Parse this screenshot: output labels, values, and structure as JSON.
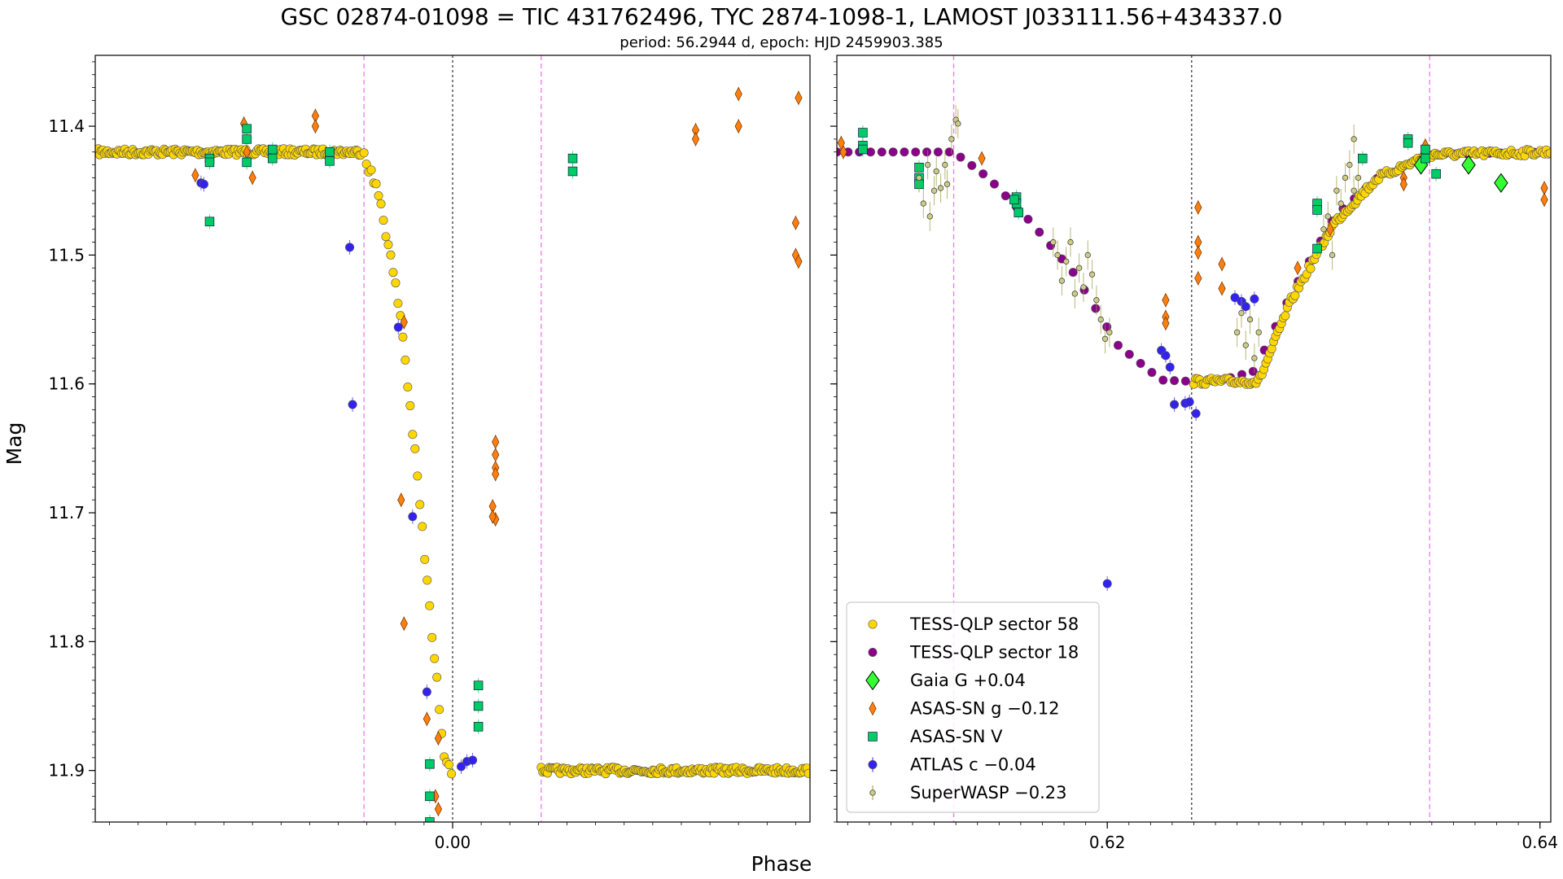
{
  "title": "GSC 02874-01098 = TIC 431762496, TYC 2874-1098-1, LAMOST J033111.56+434337.0",
  "subtitle": "period: 56.2944 d, epoch: HJD 2459903.385",
  "xlabel": "Phase",
  "ylabel": "Mag",
  "chart_data": {
    "type": "scatter",
    "ylim": [
      11.94,
      11.345
    ],
    "y_inverted": true,
    "y_ticks": [
      11.4,
      11.5,
      11.6,
      11.7,
      11.8,
      11.9
    ],
    "y_tick_labels": [
      "11.4",
      "11.5",
      "11.6",
      "11.7",
      "11.8",
      "11.9"
    ],
    "legend_position": "lower-left of right panel",
    "legend": [
      {
        "label": "TESS-QLP sector 58",
        "marker": "circle",
        "color": "#FFD700"
      },
      {
        "label": "TESS-QLP sector 18",
        "marker": "circle",
        "color": "#8B008B"
      },
      {
        "label": "Gaia G +0.04",
        "marker": "diamond",
        "color": "#33FF33"
      },
      {
        "label": "ASAS-SN g −0.12",
        "marker": "thin-diamond",
        "color": "#FF7F0E"
      },
      {
        "label": "ASAS-SN V",
        "marker": "square",
        "color": "#00CC66"
      },
      {
        "label": "ATLAS c −0.04",
        "marker": "circle",
        "color": "#3322EE"
      },
      {
        "label": "SuperWASP −0.23",
        "marker": "small-circle",
        "color": "#CCCC88"
      }
    ],
    "panels": [
      {
        "name": "primary eclipse",
        "xlim": [
          -0.0125,
          0.0125
        ],
        "x_ticks": [
          0.0
        ],
        "x_tick_labels": [
          "0.00"
        ],
        "vlines": [
          {
            "x": -0.0031,
            "style": "dashed",
            "color": "#EE82EE"
          },
          {
            "x": 0.0,
            "style": "dashed",
            "color": "#000000"
          },
          {
            "x": 0.0031,
            "style": "dashed",
            "color": "#EE82EE"
          }
        ],
        "series": [
          {
            "name": "TESS-QLP sector 58",
            "kind": "tess58_primary",
            "model": {
              "x": [
                -0.0125,
                -0.0031,
                -0.0025,
                -0.0018,
                -0.0012,
                -0.0007,
                -0.0003,
                0.0
              ],
              "y": [
                11.42,
                11.42,
                11.46,
                11.55,
                11.68,
                11.8,
                11.885,
                11.9
              ]
            },
            "gap": [
              0.0,
              0.0031
            ]
          },
          {
            "name": "ASAS-SN g −0.12",
            "points": [
              [
                -0.009,
                11.438
              ],
              [
                -0.0073,
                11.398
              ],
              [
                -0.0072,
                11.42
              ],
              [
                -0.007,
                11.44
              ],
              [
                -0.0048,
                11.392
              ],
              [
                -0.0048,
                11.4
              ],
              [
                -0.0017,
                11.552
              ],
              [
                -0.0018,
                11.69
              ],
              [
                -0.0017,
                11.786
              ],
              [
                -0.0009,
                11.86
              ],
              [
                -0.0005,
                11.93
              ],
              [
                -0.0005,
                11.875
              ],
              [
                -0.0006,
                11.92
              ],
              [
                0.0015,
                11.645
              ],
              [
                0.0015,
                11.655
              ],
              [
                0.0015,
                11.665
              ],
              [
                0.0015,
                11.67
              ],
              [
                0.0014,
                11.695
              ],
              [
                0.0015,
                11.705
              ],
              [
                0.0014,
                11.703
              ],
              [
                0.0085,
                11.403
              ],
              [
                0.0085,
                11.41
              ],
              [
                0.01,
                11.375
              ],
              [
                0.01,
                11.4
              ],
              [
                0.012,
                11.475
              ],
              [
                0.012,
                11.5
              ],
              [
                0.0121,
                11.505
              ],
              [
                0.0121,
                11.378
              ]
            ]
          },
          {
            "name": "ASAS-SN V",
            "points": [
              [
                -0.0085,
                11.425
              ],
              [
                -0.0085,
                11.428
              ],
              [
                -0.0085,
                11.474
              ],
              [
                -0.0072,
                11.402
              ],
              [
                -0.0072,
                11.41
              ],
              [
                -0.0072,
                11.428
              ],
              [
                -0.0063,
                11.418
              ],
              [
                -0.0063,
                11.425
              ],
              [
                -0.0043,
                11.42
              ],
              [
                -0.0043,
                11.427
              ],
              [
                -0.0008,
                11.895
              ],
              [
                -0.0008,
                11.92
              ],
              [
                -0.0008,
                11.94
              ],
              [
                0.0009,
                11.834
              ],
              [
                0.0009,
                11.85
              ],
              [
                0.0009,
                11.866
              ],
              [
                0.0042,
                11.425
              ],
              [
                0.0042,
                11.435
              ]
            ]
          },
          {
            "name": "ATLAS c −0.04",
            "points": [
              [
                -0.0088,
                11.444
              ],
              [
                -0.0087,
                11.445
              ],
              [
                -0.0036,
                11.494
              ],
              [
                -0.0035,
                11.616
              ],
              [
                -0.0019,
                11.556
              ],
              [
                -0.0014,
                11.703
              ],
              [
                -0.0009,
                11.839
              ],
              [
                0.0003,
                11.897
              ],
              [
                0.0005,
                11.893
              ],
              [
                0.0007,
                11.892
              ]
            ]
          }
        ]
      },
      {
        "name": "secondary eclipse",
        "xlim": [
          0.6075,
          0.6405
        ],
        "x_ticks": [
          0.62,
          0.64
        ],
        "x_tick_labels": [
          "0.62",
          "0.64"
        ],
        "vlines": [
          {
            "x": 0.6129,
            "style": "dashed",
            "color": "#EE82EE"
          },
          {
            "x": 0.6239,
            "style": "dashed",
            "color": "#000000"
          },
          {
            "x": 0.6349,
            "style": "dashed",
            "color": "#EE82EE"
          }
        ],
        "series": [
          {
            "name": "TESS-QLP sector 18",
            "kind": "tess18_secondary",
            "model": {
              "x": [
                0.6075,
                0.6129,
                0.6145,
                0.6165,
                0.6185,
                0.6205,
                0.6225,
                0.6239,
                0.6253,
                0.6268,
                0.6285,
                0.6305,
                0.6325,
                0.6349,
                0.6405
              ],
              "y": [
                11.42,
                11.42,
                11.44,
                11.475,
                11.515,
                11.57,
                11.597,
                11.598,
                11.597,
                11.59,
                11.53,
                11.47,
                11.44,
                11.422,
                11.42
              ]
            }
          },
          {
            "name": "TESS-QLP sector 58",
            "kind": "tess58_secondary",
            "model": {
              "x": [
                0.6239,
                0.627,
                0.6285,
                0.6305,
                0.6325,
                0.6349,
                0.6405
              ],
              "y": [
                11.598,
                11.598,
                11.535,
                11.475,
                11.44,
                11.422,
                11.42
              ]
            }
          },
          {
            "name": "Gaia G +0.04",
            "points": [
              [
                0.6345,
                11.43
              ],
              [
                0.6367,
                11.43
              ],
              [
                0.6382,
                11.444
              ]
            ]
          },
          {
            "name": "ASAS-SN g −0.12",
            "points": [
              [
                0.6077,
                11.413
              ],
              [
                0.6078,
                11.42
              ],
              [
                0.6142,
                11.425
              ],
              [
                0.6242,
                11.463
              ],
              [
                0.6242,
                11.49
              ],
              [
                0.6242,
                11.498
              ],
              [
                0.6242,
                11.518
              ],
              [
                0.6253,
                11.507
              ],
              [
                0.6253,
                11.526
              ],
              [
                0.6227,
                11.535
              ],
              [
                0.6227,
                11.548
              ],
              [
                0.6227,
                11.553
              ],
              [
                0.6288,
                11.51
              ],
              [
                0.6303,
                11.48
              ],
              [
                0.6337,
                11.44
              ],
              [
                0.6337,
                11.445
              ],
              [
                0.6347,
                11.415
              ],
              [
                0.6402,
                11.448
              ],
              [
                0.6402,
                11.457
              ]
            ]
          },
          {
            "name": "ASAS-SN V",
            "points": [
              [
                0.6087,
                11.405
              ],
              [
                0.6087,
                11.415
              ],
              [
                0.6087,
                11.418
              ],
              [
                0.6113,
                11.432
              ],
              [
                0.6113,
                11.44
              ],
              [
                0.6113,
                11.445
              ],
              [
                0.6158,
                11.455
              ],
              [
                0.6158,
                11.46
              ],
              [
                0.6159,
                11.467
              ],
              [
                0.6157,
                11.457
              ],
              [
                0.6297,
                11.46
              ],
              [
                0.6297,
                11.465
              ],
              [
                0.6297,
                11.495
              ],
              [
                0.6318,
                11.425
              ],
              [
                0.6339,
                11.41
              ],
              [
                0.6339,
                11.413
              ],
              [
                0.6347,
                11.418
              ],
              [
                0.6347,
                11.425
              ],
              [
                0.6352,
                11.437
              ]
            ]
          },
          {
            "name": "ATLAS c −0.04",
            "points": [
              [
                0.62,
                11.755
              ],
              [
                0.6225,
                11.574
              ],
              [
                0.6227,
                11.578
              ],
              [
                0.6229,
                11.587
              ],
              [
                0.6231,
                11.616
              ],
              [
                0.6236,
                11.615
              ],
              [
                0.6238,
                11.614
              ],
              [
                0.6241,
                11.623
              ],
              [
                0.6259,
                11.533
              ],
              [
                0.6262,
                11.536
              ],
              [
                0.6264,
                11.54
              ],
              [
                0.6268,
                11.534
              ]
            ]
          },
          {
            "name": "SuperWASP −0.23",
            "points": [
              [
                0.6113,
                11.44
              ],
              [
                0.6115,
                11.46
              ],
              [
                0.6117,
                11.43
              ],
              [
                0.6118,
                11.47
              ],
              [
                0.612,
                11.45
              ],
              [
                0.6121,
                11.435
              ],
              [
                0.6123,
                11.448
              ],
              [
                0.6125,
                11.43
              ],
              [
                0.6126,
                11.445
              ],
              [
                0.6128,
                11.41
              ],
              [
                0.613,
                11.395
              ],
              [
                0.6131,
                11.398
              ],
              [
                0.6175,
                11.49
              ],
              [
                0.6177,
                11.5
              ],
              [
                0.6179,
                11.52
              ],
              [
                0.6181,
                11.505
              ],
              [
                0.6183,
                11.49
              ],
              [
                0.6185,
                11.53
              ],
              [
                0.6187,
                11.51
              ],
              [
                0.6189,
                11.525
              ],
              [
                0.6191,
                11.5
              ],
              [
                0.6193,
                11.515
              ],
              [
                0.6195,
                11.535
              ],
              [
                0.6197,
                11.55
              ],
              [
                0.6199,
                11.565
              ],
              [
                0.6201,
                11.56
              ],
              [
                0.626,
                11.56
              ],
              [
                0.6262,
                11.545
              ],
              [
                0.6264,
                11.57
              ],
              [
                0.6266,
                11.55
              ],
              [
                0.6268,
                11.58
              ],
              [
                0.627,
                11.56
              ],
              [
                0.63,
                11.48
              ],
              [
                0.6302,
                11.47
              ],
              [
                0.6304,
                11.5
              ],
              [
                0.6306,
                11.45
              ],
              [
                0.6308,
                11.46
              ],
              [
                0.631,
                11.44
              ],
              [
                0.6312,
                11.43
              ],
              [
                0.6314,
                11.45
              ],
              [
                0.6316,
                11.44
              ],
              [
                0.6314,
                11.41
              ]
            ]
          }
        ]
      }
    ]
  }
}
